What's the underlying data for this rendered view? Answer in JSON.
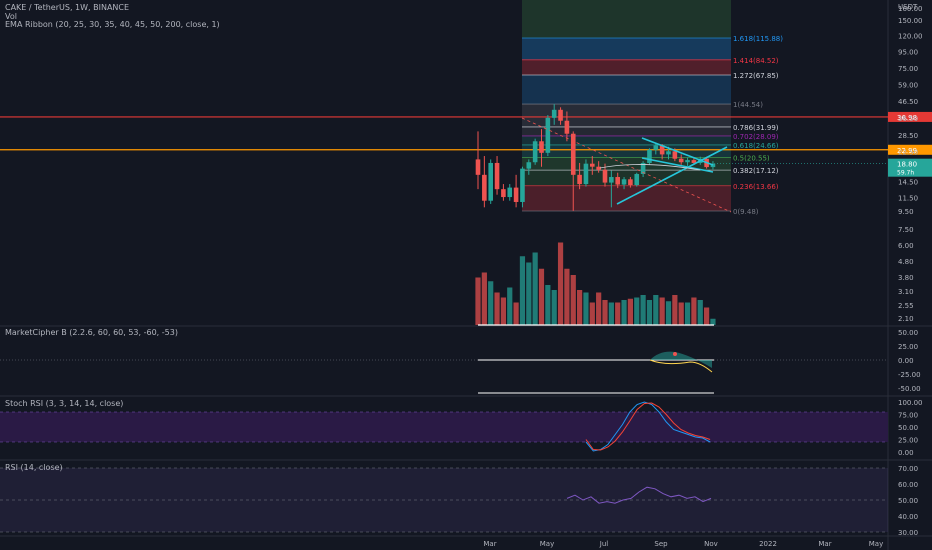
{
  "header": {
    "symbol_line": "CAKE / TetherUS, 1W, BINANCE",
    "vol_label": "Vol",
    "ema_label": "EMA Ribbon (20, 25, 30, 35, 40, 45, 50, 200, close, 1)",
    "currency": "USDT"
  },
  "panes": {
    "mc_label": "MarketCipher B (2.2.6, 60, 60, 53, -60, -53)",
    "stoch_label": "Stoch RSI (3, 3, 14, 14, close)",
    "rsi_label": "RSI (14, close)"
  },
  "colors": {
    "background": "#131722",
    "up": "#26a69a",
    "down": "#ef5350",
    "red_line": "#e53935",
    "orange_line": "#ff9800",
    "last_price": "#26a69a",
    "stoch_band": "#2a1a45",
    "stoch_k": "#2196f3",
    "stoch_d": "#f44336",
    "rsi_line": "#7e57c2"
  },
  "chart_data": [
    {
      "type": "candlestick",
      "pane": "price",
      "scale": "log",
      "y_ticks": [
        160.0,
        150.0,
        120.0,
        95.0,
        75.0,
        59.0,
        46.5,
        36.5,
        28.5,
        22.5,
        18.5,
        14.5,
        11.5,
        9.5,
        7.5,
        6.0,
        4.8,
        3.8,
        3.1,
        2.55,
        2.1
      ],
      "x_ticks": [
        "Mar",
        "May",
        "Jul",
        "Sep",
        "Nov",
        "2022",
        "Mar",
        "May"
      ],
      "candles": [
        {
          "o": 20,
          "h": 30,
          "l": 13,
          "c": 16
        },
        {
          "o": 16,
          "h": 21,
          "l": 10,
          "c": 11
        },
        {
          "o": 11,
          "h": 20,
          "l": 10.5,
          "c": 19
        },
        {
          "o": 19,
          "h": 21,
          "l": 12,
          "c": 13
        },
        {
          "o": 13,
          "h": 14,
          "l": 11,
          "c": 11.6
        },
        {
          "o": 11.6,
          "h": 14,
          "l": 11,
          "c": 13.3
        },
        {
          "o": 13.3,
          "h": 16,
          "l": 10,
          "c": 10.8
        },
        {
          "o": 10.8,
          "h": 18,
          "l": 10,
          "c": 17.5
        },
        {
          "o": 17.5,
          "h": 20,
          "l": 16,
          "c": 19.2
        },
        {
          "o": 19.2,
          "h": 27,
          "l": 18.5,
          "c": 26
        },
        {
          "o": 26,
          "h": 31,
          "l": 18,
          "c": 22
        },
        {
          "o": 22,
          "h": 38,
          "l": 21,
          "c": 36.5
        },
        {
          "o": 36.5,
          "h": 44.5,
          "l": 33,
          "c": 41
        },
        {
          "o": 41,
          "h": 42.5,
          "l": 33,
          "c": 35
        },
        {
          "o": 35,
          "h": 40,
          "l": 26,
          "c": 29
        },
        {
          "o": 29,
          "h": 30,
          "l": 9.5,
          "c": 16
        },
        {
          "o": 16,
          "h": 19,
          "l": 13,
          "c": 14
        },
        {
          "o": 14,
          "h": 20,
          "l": 13.5,
          "c": 18.8
        },
        {
          "o": 18.8,
          "h": 21,
          "l": 16,
          "c": 18
        },
        {
          "o": 18,
          "h": 19.5,
          "l": 16.5,
          "c": 17.2
        },
        {
          "o": 17.2,
          "h": 18.8,
          "l": 13.5,
          "c": 14.3
        },
        {
          "o": 14.3,
          "h": 17,
          "l": 10,
          "c": 15.5
        },
        {
          "o": 15.5,
          "h": 16.5,
          "l": 13.2,
          "c": 13.9
        },
        {
          "o": 13.9,
          "h": 15.5,
          "l": 13,
          "c": 15
        },
        {
          "o": 15,
          "h": 15.5,
          "l": 13.3,
          "c": 13.8
        },
        {
          "o": 13.8,
          "h": 16.5,
          "l": 13.5,
          "c": 16.2
        },
        {
          "o": 16.2,
          "h": 19.5,
          "l": 15.5,
          "c": 19
        },
        {
          "o": 19,
          "h": 23.5,
          "l": 18.5,
          "c": 23
        },
        {
          "o": 23,
          "h": 25.5,
          "l": 21.5,
          "c": 24.5
        },
        {
          "o": 24.5,
          "h": 25,
          "l": 20,
          "c": 21.5
        },
        {
          "o": 21.5,
          "h": 24,
          "l": 20,
          "c": 22.5
        },
        {
          "o": 22.5,
          "h": 23.5,
          "l": 19.5,
          "c": 20.2
        },
        {
          "o": 20.2,
          "h": 21.5,
          "l": 18.5,
          "c": 19.2
        },
        {
          "o": 19.2,
          "h": 20.5,
          "l": 18.2,
          "c": 19.8
        },
        {
          "o": 19.8,
          "h": 20.5,
          "l": 18.5,
          "c": 19
        },
        {
          "o": 19,
          "h": 20.8,
          "l": 18.5,
          "c": 20.2
        },
        {
          "o": 20.2,
          "h": 20.8,
          "l": 17.5,
          "c": 17.9
        },
        {
          "o": 17.9,
          "h": 19.5,
          "l": 17.3,
          "c": 18.8
        }
      ],
      "volume": [
        38,
        42,
        35,
        26,
        22,
        30,
        18,
        55,
        50,
        58,
        45,
        32,
        28,
        66,
        45,
        40,
        28,
        26,
        18,
        26,
        20,
        18,
        18,
        20,
        21,
        22,
        24,
        20,
        24,
        22,
        19,
        24,
        18,
        18,
        22,
        20,
        14,
        5
      ],
      "fib_levels": [
        {
          "ratio": "0",
          "label": "0(9.48)",
          "price": 9.48,
          "color": "#787b86"
        },
        {
          "ratio": "0.236",
          "label": "0.236(13.66)",
          "price": 13.66,
          "color": "#f23645"
        },
        {
          "ratio": "0.382",
          "label": "0.382(17.12)",
          "price": 17.12,
          "color": "#d1d4dc"
        },
        {
          "ratio": "0.5",
          "label": "0.5(20.55)",
          "price": 20.55,
          "color": "#4caf50"
        },
        {
          "ratio": "0.618",
          "label": "0.618(24.66)",
          "price": 24.66,
          "color": "#26a69a"
        },
        {
          "ratio": "0.702",
          "label": "0.702(28.09)",
          "price": 28.09,
          "color": "#9c27b0"
        },
        {
          "ratio": "0.786",
          "label": "0.786(31.99)",
          "price": 31.99,
          "color": "#d1d4dc"
        },
        {
          "ratio": "1",
          "label": "1(44.54)",
          "price": 44.54,
          "color": "#787b86"
        },
        {
          "ratio": "1.272",
          "label": "1.272(67.85)",
          "price": 67.85,
          "color": "#d1d4dc"
        },
        {
          "ratio": "1.414",
          "label": "1.414(84.52)",
          "price": 84.52,
          "color": "#f23645"
        },
        {
          "ratio": "1.618",
          "label": "1.618(115.88)",
          "price": 115.88,
          "color": "#2196f3"
        }
      ],
      "horizontal_lines": [
        {
          "price": 36.98,
          "label": "36.98",
          "color": "#e53935"
        },
        {
          "price": 22.99,
          "label": "22.99",
          "color": "#ff9800"
        }
      ],
      "last_price": {
        "price": 18.8,
        "label": "18.80",
        "countdown": "59.7h"
      }
    },
    {
      "type": "line",
      "pane": "market_cipher_b",
      "y_ticks": [
        50.0,
        25.0,
        0.0,
        -25.0,
        -50.0
      ]
    },
    {
      "type": "line",
      "pane": "stoch_rsi",
      "y_ticks": [
        100.0,
        75.0,
        50.0,
        25.0,
        0.0
      ],
      "series": [
        {
          "values": [
            20,
            2,
            5,
            15,
            35,
            55,
            80,
            95,
            100,
            95,
            80,
            60,
            45,
            40,
            35,
            30,
            28,
            20
          ]
        },
        {
          "values": [
            25,
            5,
            4,
            10,
            22,
            40,
            62,
            85,
            97,
            98,
            90,
            75,
            58,
            45,
            38,
            33,
            30,
            25
          ]
        }
      ]
    },
    {
      "type": "line",
      "pane": "rsi",
      "y_ticks": [
        70.0,
        60.0,
        50.0,
        40.0,
        30.0
      ],
      "series": [
        {
          "values": [
            51,
            53,
            50,
            52,
            48,
            49,
            48,
            50,
            51,
            55,
            58,
            57,
            54,
            52,
            53,
            51,
            52,
            49,
            51
          ]
        }
      ]
    }
  ]
}
